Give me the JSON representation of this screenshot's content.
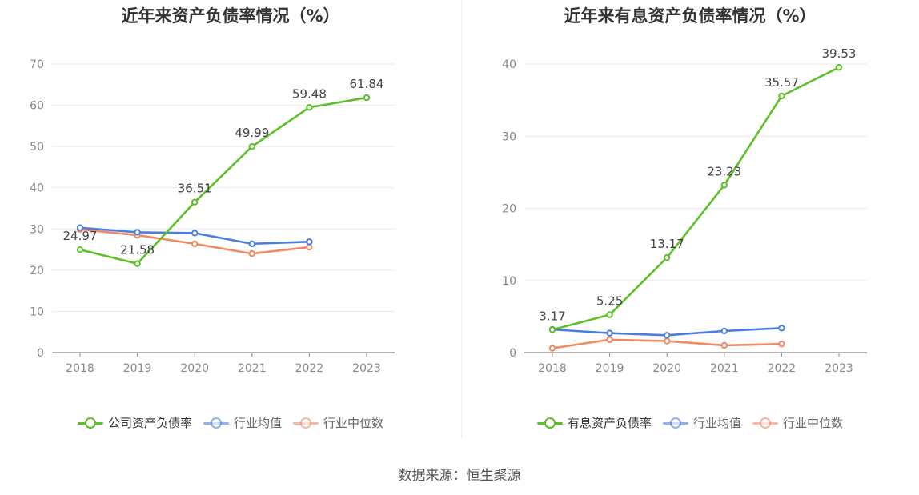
{
  "source": "数据来源：恒生聚源",
  "chart_data": [
    {
      "type": "line",
      "title": "近年来资产负债率情况（%）",
      "categories": [
        "2018",
        "2019",
        "2020",
        "2021",
        "2022",
        "2023"
      ],
      "ylim": [
        0,
        70
      ],
      "yticks": [
        "0",
        "10",
        "20",
        "30",
        "40",
        "50",
        "60",
        "70"
      ],
      "grid": true,
      "legend_position": "bottom",
      "series": [
        {
          "name": "公司资产负债率",
          "color": "#5cc129",
          "values": [
            24.97,
            21.58,
            36.51,
            49.99,
            59.48,
            61.84
          ],
          "labels": [
            "24.97",
            "21.58",
            "36.51",
            "49.99",
            "59.48",
            "61.84"
          ]
        },
        {
          "name": "行业均值",
          "color": "#4a7fe0",
          "values": [
            30.3,
            29.2,
            29.0,
            26.4,
            26.9,
            null
          ]
        },
        {
          "name": "行业中位数",
          "color": "#f08a62",
          "values": [
            29.9,
            28.5,
            26.4,
            24.0,
            25.6,
            null
          ]
        }
      ]
    },
    {
      "type": "line",
      "title": "近年来有息资产负债率情况（%）",
      "categories": [
        "2018",
        "2019",
        "2020",
        "2021",
        "2022",
        "2023"
      ],
      "ylim": [
        0,
        40
      ],
      "yticks": [
        "0",
        "10",
        "20",
        "30",
        "40"
      ],
      "grid": true,
      "legend_position": "bottom",
      "series": [
        {
          "name": "有息资产负债率",
          "color": "#5cc129",
          "values": [
            3.17,
            5.25,
            13.17,
            23.23,
            35.57,
            39.53
          ],
          "labels": [
            "3.17",
            "5.25",
            "13.17",
            "23.23",
            "35.57",
            "39.53"
          ]
        },
        {
          "name": "行业均值",
          "color": "#4a7fe0",
          "values": [
            3.2,
            2.7,
            2.4,
            3.0,
            3.4,
            null
          ]
        },
        {
          "name": "行业中位数",
          "color": "#f08a62",
          "values": [
            0.6,
            1.8,
            1.6,
            1.0,
            1.2,
            null
          ]
        }
      ]
    }
  ]
}
